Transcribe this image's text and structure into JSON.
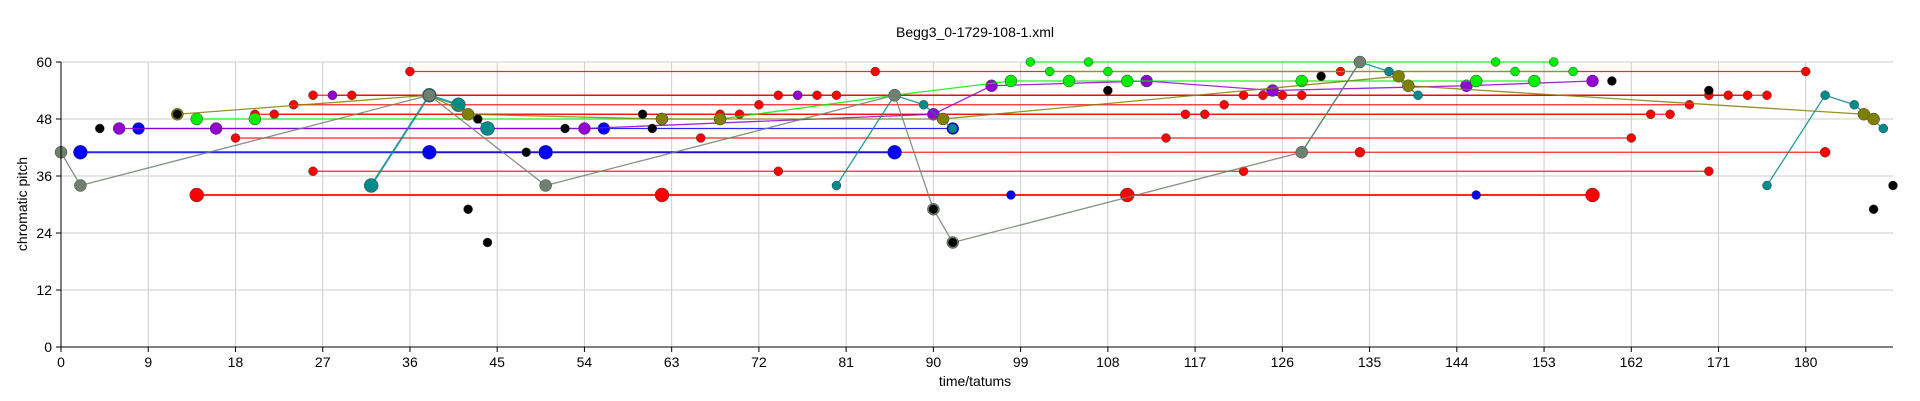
{
  "chart_data": {
    "type": "scatter",
    "title": "Begg3_0-1729-108-1.xml",
    "xlabel": "time/tatums",
    "ylabel": "chromatic pitch",
    "xlim": [
      0,
      189
    ],
    "ylim": [
      0,
      60
    ],
    "xticks": [
      0,
      9,
      18,
      27,
      36,
      45,
      54,
      63,
      72,
      81,
      90,
      99,
      108,
      117,
      126,
      135,
      144,
      153,
      162,
      171,
      180
    ],
    "yticks": [
      0,
      12,
      24,
      36,
      48,
      60
    ],
    "grid": true,
    "colors": {
      "red": "#ff0000",
      "blue": "#0000ff",
      "green": "#00ee00",
      "purple": "#9400d3",
      "teal": "#008b8b",
      "olive": "#808000",
      "gray": "#708070",
      "black": "#000000"
    },
    "series": [
      {
        "color": "red",
        "points": [
          [
            14,
            32
          ],
          [
            62,
            32
          ],
          [
            110,
            32
          ],
          [
            158,
            32
          ]
        ],
        "size": "large",
        "connect": true
      },
      {
        "color": "red",
        "points": [
          [
            26,
            37
          ],
          [
            74,
            37
          ],
          [
            122,
            37
          ],
          [
            170,
            37
          ]
        ],
        "size": "small",
        "connect": true
      },
      {
        "color": "red",
        "points": [
          [
            38,
            41
          ],
          [
            86,
            41
          ],
          [
            134,
            41
          ],
          [
            182,
            41
          ]
        ],
        "size": "mixed",
        "connect": true
      },
      {
        "color": "red",
        "points": [
          [
            18,
            44
          ],
          [
            66,
            44
          ],
          [
            114,
            44
          ],
          [
            162,
            44
          ]
        ],
        "size": "small",
        "connect": true
      },
      {
        "color": "red",
        "points": [
          [
            20,
            49
          ],
          [
            68,
            49
          ],
          [
            116,
            49
          ],
          [
            164,
            49
          ]
        ],
        "size": "small",
        "connect": true
      },
      {
        "color": "red",
        "points": [
          [
            22,
            49
          ],
          [
            70,
            49
          ],
          [
            118,
            49
          ],
          [
            166,
            49
          ]
        ],
        "size": "small",
        "connect": true
      },
      {
        "color": "red",
        "points": [
          [
            24,
            51
          ],
          [
            72,
            51
          ],
          [
            120,
            51
          ],
          [
            168,
            51
          ]
        ],
        "size": "small",
        "connect": true
      },
      {
        "color": "red",
        "points": [
          [
            26,
            53
          ],
          [
            74,
            53
          ],
          [
            122,
            53
          ],
          [
            170,
            53
          ]
        ],
        "size": "small",
        "connect": true
      },
      {
        "color": "red",
        "points": [
          [
            28,
            53
          ],
          [
            76,
            53
          ],
          [
            124,
            53
          ],
          [
            172,
            53
          ]
        ],
        "size": "small",
        "connect": true
      },
      {
        "color": "red",
        "points": [
          [
            30,
            53
          ],
          [
            78,
            53
          ],
          [
            126,
            53
          ],
          [
            174,
            53
          ]
        ],
        "size": "small",
        "connect": true
      },
      {
        "color": "red",
        "points": [
          [
            36,
            58
          ],
          [
            84,
            58
          ],
          [
            132,
            58
          ],
          [
            180,
            58
          ]
        ],
        "size": "small",
        "connect": true
      },
      {
        "color": "red",
        "points": [
          [
            80,
            53
          ],
          [
            128,
            53
          ],
          [
            176,
            53
          ]
        ],
        "size": "small",
        "connect": true
      },
      {
        "color": "blue",
        "points": [
          [
            2,
            41
          ],
          [
            38,
            41
          ],
          [
            50,
            41
          ],
          [
            86,
            41
          ]
        ],
        "size": "large",
        "connect": true
      },
      {
        "color": "blue",
        "points": [
          [
            8,
            46
          ],
          [
            44,
            46
          ],
          [
            56,
            46
          ],
          [
            92,
            46
          ]
        ],
        "size": "medium",
        "connect": true
      },
      {
        "color": "blue",
        "points": [
          [
            98,
            32
          ],
          [
            146,
            32
          ]
        ],
        "size": "small",
        "connect": false
      },
      {
        "color": "purple",
        "points": [
          [
            6,
            46
          ],
          [
            16,
            46
          ],
          [
            54,
            46
          ],
          [
            90,
            49
          ],
          [
            96,
            55
          ],
          [
            112,
            56
          ],
          [
            125,
            54
          ],
          [
            145,
            55
          ],
          [
            158,
            56
          ]
        ],
        "size": "medium",
        "connect": true
      },
      {
        "color": "purple",
        "points": [
          [
            28,
            53
          ],
          [
            76,
            53
          ]
        ],
        "size": "small",
        "connect": false
      },
      {
        "color": "green",
        "points": [
          [
            14,
            48
          ],
          [
            20,
            48
          ],
          [
            62,
            48
          ],
          [
            68,
            48
          ],
          [
            86,
            53
          ],
          [
            98,
            56
          ],
          [
            104,
            56
          ],
          [
            110,
            56
          ],
          [
            128,
            56
          ],
          [
            146,
            56
          ],
          [
            152,
            56
          ]
        ],
        "size": "medium",
        "connect": true
      },
      {
        "color": "green",
        "points": [
          [
            100,
            60
          ],
          [
            106,
            60
          ],
          [
            148,
            60
          ],
          [
            154,
            60
          ]
        ],
        "size": "small",
        "connect": true
      },
      {
        "color": "green",
        "points": [
          [
            102,
            58
          ],
          [
            108,
            58
          ],
          [
            150,
            58
          ],
          [
            156,
            58
          ]
        ],
        "size": "small",
        "connect": true
      },
      {
        "color": "teal",
        "points": [
          [
            32,
            34
          ],
          [
            38,
            53
          ],
          [
            41,
            51
          ],
          [
            44,
            46
          ]
        ],
        "size": "large",
        "connect": true
      },
      {
        "color": "teal",
        "points": [
          [
            80,
            34
          ],
          [
            86,
            53
          ],
          [
            89,
            51
          ],
          [
            92,
            46
          ]
        ],
        "size": "small",
        "connect": true
      },
      {
        "color": "teal",
        "points": [
          [
            128,
            41
          ],
          [
            134,
            60
          ],
          [
            137,
            58
          ],
          [
            140,
            53
          ]
        ],
        "size": "small",
        "connect": true
      },
      {
        "color": "teal",
        "points": [
          [
            176,
            34
          ],
          [
            182,
            53
          ],
          [
            185,
            51
          ],
          [
            188,
            46
          ]
        ],
        "size": "small",
        "connect": true
      },
      {
        "color": "olive",
        "points": [
          [
            12,
            49
          ],
          [
            38,
            53
          ],
          [
            42,
            49
          ],
          [
            62,
            48
          ],
          [
            68,
            48
          ],
          [
            91,
            48
          ],
          [
            138,
            57
          ],
          [
            139,
            55
          ],
          [
            186,
            49
          ],
          [
            187,
            48
          ]
        ],
        "size": "medium",
        "connect": true
      },
      {
        "color": "gray",
        "points": [
          [
            0,
            41
          ],
          [
            2,
            34
          ],
          [
            38,
            53
          ],
          [
            50,
            34
          ],
          [
            86,
            53
          ],
          [
            90,
            29
          ],
          [
            92,
            22
          ],
          [
            128,
            41
          ],
          [
            134,
            60
          ]
        ],
        "size": "medium",
        "connect": true
      },
      {
        "color": "black",
        "points": [
          [
            4,
            46
          ],
          [
            12,
            49
          ],
          [
            43,
            48
          ],
          [
            48,
            41
          ],
          [
            52,
            46
          ],
          [
            60,
            49
          ],
          [
            61,
            46
          ],
          [
            90,
            29
          ],
          [
            92,
            22
          ],
          [
            108,
            54
          ],
          [
            130,
            57
          ],
          [
            160,
            56
          ],
          [
            170,
            54
          ],
          [
            187,
            29
          ],
          [
            189,
            34
          ]
        ],
        "size": "small",
        "connect": false
      },
      {
        "color": "black",
        "points": [
          [
            42,
            29
          ],
          [
            44,
            22
          ]
        ],
        "size": "small",
        "connect": false
      }
    ]
  }
}
